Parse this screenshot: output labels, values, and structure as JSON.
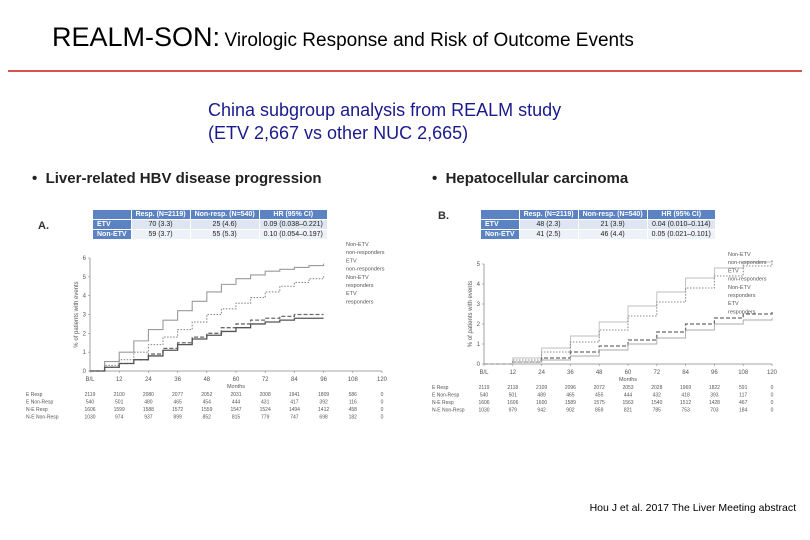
{
  "title": {
    "main": "REALM-SON:",
    "rest": "Virologic Response and Risk of Outcome Events"
  },
  "subtitle": [
    "China subgroup analysis from REALM study",
    "(ETV 2,667 vs other NUC 2,665)"
  ],
  "footer": "Hou J et al. 2017 The Liver Meeting abstract",
  "colors": {
    "rule": "#d9534f",
    "table_header": "#5b82c2",
    "subtitle": "#1a1a8c"
  },
  "chart_data": [
    {
      "type": "line",
      "bullet": "Liver-related HBV disease progression",
      "panel": "A.",
      "ylabel": "% of patients with events",
      "xlabel": "Months",
      "x": [
        0,
        12,
        24,
        36,
        48,
        60,
        72,
        84,
        96,
        108,
        120
      ],
      "x_tick_labels": [
        "B/L",
        "12",
        "24",
        "36",
        "48",
        "60",
        "72",
        "84",
        "96",
        "108",
        "120"
      ],
      "y_ticks": [
        0,
        1,
        2,
        3,
        4,
        5,
        6
      ],
      "xlim": [
        0,
        120
      ],
      "ylim": [
        0,
        6
      ],
      "series": [
        {
          "name": "Non-ETV non-responders",
          "style": "solid-gray",
          "x": [
            0,
            6,
            12,
            18,
            24,
            30,
            36,
            42,
            48,
            54,
            60,
            66,
            72,
            78,
            84,
            90,
            96
          ],
          "y": [
            0,
            0.5,
            1.0,
            1.6,
            2.2,
            2.7,
            3.2,
            3.7,
            4.2,
            4.6,
            4.9,
            5.1,
            5.3,
            5.4,
            5.5,
            5.6,
            5.7
          ]
        },
        {
          "name": "ETV non-responders",
          "style": "dotted",
          "x": [
            0,
            6,
            12,
            18,
            24,
            30,
            36,
            42,
            48,
            54,
            60,
            66,
            72,
            78,
            84,
            90,
            96
          ],
          "y": [
            0,
            0.3,
            0.6,
            1.0,
            1.4,
            1.8,
            2.2,
            2.6,
            3.0,
            3.3,
            3.6,
            3.9,
            4.2,
            4.5,
            4.7,
            4.9,
            5.1
          ]
        },
        {
          "name": "Non-ETV responders",
          "style": "dashed",
          "x": [
            0,
            6,
            12,
            18,
            24,
            30,
            36,
            42,
            48,
            54,
            60,
            66,
            72,
            78,
            84,
            90,
            96
          ],
          "y": [
            0,
            0.2,
            0.4,
            0.6,
            0.9,
            1.2,
            1.5,
            1.8,
            2.0,
            2.3,
            2.5,
            2.7,
            2.8,
            2.9,
            3.0,
            3.0,
            3.0
          ]
        },
        {
          "name": "ETV responders",
          "style": "solid-dark",
          "x": [
            0,
            6,
            12,
            18,
            24,
            30,
            36,
            42,
            48,
            54,
            60,
            66,
            72,
            78,
            84,
            90,
            96
          ],
          "y": [
            0,
            0.2,
            0.4,
            0.6,
            0.8,
            1.1,
            1.4,
            1.7,
            1.9,
            2.1,
            2.3,
            2.5,
            2.6,
            2.7,
            2.8,
            2.8,
            2.8
          ]
        }
      ],
      "legend": [
        "Non-ETV",
        "non-responders",
        "ETV",
        "non-responders",
        "Non-ETV",
        "responders",
        "ETV",
        "responders"
      ],
      "table": {
        "headers": [
          "",
          "Resp. (N=2119)",
          "Non-resp. (N=540)",
          "HR (95% CI)"
        ],
        "rows": [
          [
            "ETV",
            "70 (3.3)",
            "25 (4.6)",
            "0.09 (0.038–0.221)"
          ],
          [
            "Non-ETV",
            "59 (3.7)",
            "55 (5.3)",
            "0.10 (0.054–0.197)"
          ]
        ]
      },
      "risk_table": {
        "row_labels": [
          "E Resp",
          "E Non-Resp",
          "N-E Resp",
          "N-E Non-Resp"
        ],
        "rows": [
          [
            "2119",
            "2100",
            "2080",
            "2077",
            "2052",
            "2031",
            "2008",
            "1941",
            "1809",
            "586",
            "0"
          ],
          [
            "540",
            "501",
            "480",
            "465",
            "454",
            "444",
            "431",
            "417",
            "392",
            "116",
            "0"
          ],
          [
            "1606",
            "1599",
            "1588",
            "1572",
            "1559",
            "1547",
            "1524",
            "1494",
            "1412",
            "458",
            "0"
          ],
          [
            "1030",
            "974",
            "937",
            "899",
            "852",
            "815",
            "779",
            "747",
            "698",
            "182",
            "0"
          ]
        ]
      }
    },
    {
      "type": "line",
      "bullet": "Hepatocellular carcinoma",
      "panel": "B.",
      "ylabel": "% of patients with events",
      "xlabel": "Months",
      "x": [
        0,
        12,
        24,
        36,
        48,
        60,
        72,
        84,
        96,
        108,
        120
      ],
      "x_tick_labels": [
        "B/L",
        "12",
        "24",
        "36",
        "48",
        "60",
        "72",
        "84",
        "96",
        "108",
        "120"
      ],
      "y_ticks": [
        0,
        1,
        2,
        3,
        4,
        5
      ],
      "xlim": [
        0,
        120
      ],
      "ylim": [
        0,
        5
      ],
      "series": [
        {
          "name": "Non-ETV non-responders",
          "style": "solid-light",
          "x": [
            0,
            12,
            24,
            36,
            48,
            60,
            72,
            84,
            96,
            108,
            120
          ],
          "y": [
            0,
            0.3,
            0.8,
            1.4,
            2.1,
            2.9,
            3.6,
            4.3,
            4.8,
            5.1,
            5.2
          ]
        },
        {
          "name": "ETV non-responders",
          "style": "dotted",
          "x": [
            0,
            12,
            24,
            36,
            48,
            60,
            72,
            84,
            96,
            108,
            120
          ],
          "y": [
            0,
            0.2,
            0.6,
            1.1,
            1.7,
            2.4,
            3.1,
            3.8,
            4.4,
            4.9,
            5.2
          ]
        },
        {
          "name": "Non-ETV responders",
          "style": "dashed",
          "x": [
            0,
            12,
            24,
            36,
            48,
            60,
            72,
            84,
            96,
            108,
            120
          ],
          "y": [
            0,
            0.1,
            0.3,
            0.6,
            0.9,
            1.2,
            1.6,
            2.0,
            2.3,
            2.5,
            2.6
          ]
        },
        {
          "name": "ETV responders",
          "style": "solid-light2",
          "x": [
            0,
            12,
            24,
            36,
            48,
            60,
            72,
            84,
            96,
            108,
            120
          ],
          "y": [
            0,
            0.1,
            0.2,
            0.4,
            0.7,
            1.0,
            1.3,
            1.7,
            2.0,
            2.2,
            2.3
          ]
        }
      ],
      "legend": [
        "Non-ETV",
        "non-responders",
        "ETV",
        "non-responders",
        "Non-ETV",
        "responders",
        "ETV",
        "responders"
      ],
      "table": {
        "headers": [
          "",
          "Resp. (N=2119)",
          "Non-resp. (N=540)",
          "HR (95% CI)"
        ],
        "rows": [
          [
            "ETV",
            "48 (2.3)",
            "21 (3.9)",
            "0.04 (0.010–0.114)"
          ],
          [
            "Non-ETV",
            "41 (2.5)",
            "46 (4.4)",
            "0.05 (0.021–0.101)"
          ]
        ]
      },
      "risk_table": {
        "row_labels": [
          "E Resp",
          "E Non-Resp",
          "N-E Resp",
          "N-E Non-Resp"
        ],
        "rows": [
          [
            "2119",
            "2118",
            "2109",
            "2096",
            "2072",
            "2053",
            "2028",
            "1969",
            "1822",
            "591",
            "0"
          ],
          [
            "540",
            "501",
            "489",
            "465",
            "455",
            "444",
            "432",
            "418",
            "393",
            "117",
            "0"
          ],
          [
            "1606",
            "1606",
            "1600",
            "1589",
            "1575",
            "1563",
            "1540",
            "1512",
            "1428",
            "467",
            "0"
          ],
          [
            "1030",
            "979",
            "942",
            "902",
            "859",
            "821",
            "785",
            "753",
            "703",
            "184",
            "0"
          ]
        ]
      }
    }
  ]
}
